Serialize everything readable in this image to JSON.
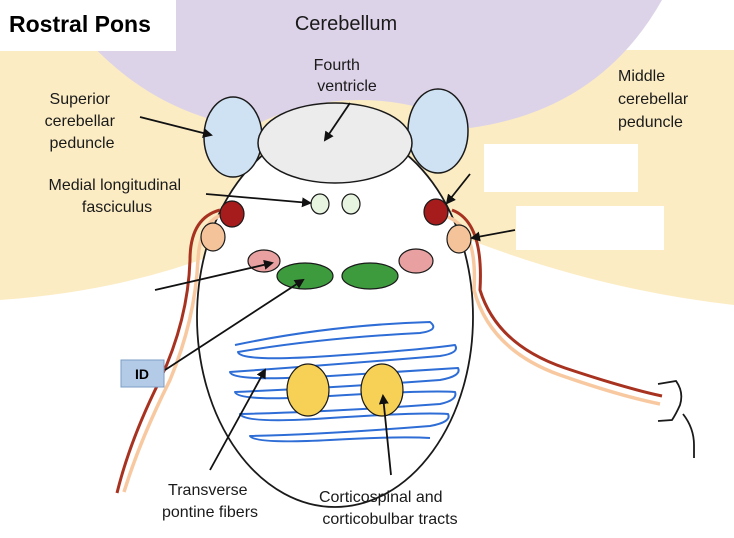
{
  "title": "Rostral Pons",
  "labels": {
    "cerebellum": "Cerebellum",
    "fourth_ventricle": [
      "Fourth",
      "ventricle"
    ],
    "superior_cerebellar_peduncle": [
      "Superior",
      "cerebellar",
      "peduncle"
    ],
    "middle_cerebellar_peduncle": [
      "Middle",
      "cerebellar",
      "peduncle"
    ],
    "medial_longitudinal_fasciculus": [
      "Medial longitudinal",
      "fasciculus"
    ],
    "transverse_pontine_fibers": [
      "Transverse",
      "pontine fibers"
    ],
    "corticospinal_tracts": [
      "Corticospinal and",
      "corticobulbar tracts"
    ]
  },
  "id_box": "ID",
  "answer_boxes": [
    "",
    ""
  ],
  "colors": {
    "cerebellum": "#ddd3e8",
    "peduncle_region": "#fbecc4",
    "superior_peduncle": "#cfe2f3",
    "ventricle": "#ececec",
    "mlf": "#e6f4e0",
    "red_nucleus": "#a61c1c",
    "orange_nucleus": "#f4c39a",
    "pink_nucleus": "#e8a0a0",
    "green_nucleus": "#3d9a3d",
    "corticospinal": "#f6d155",
    "transverse_fibers": "#2e6dd6",
    "id_box": "#b4cbe7",
    "tract_red": "#a83220",
    "tract_peach": "#f8c9a0"
  }
}
